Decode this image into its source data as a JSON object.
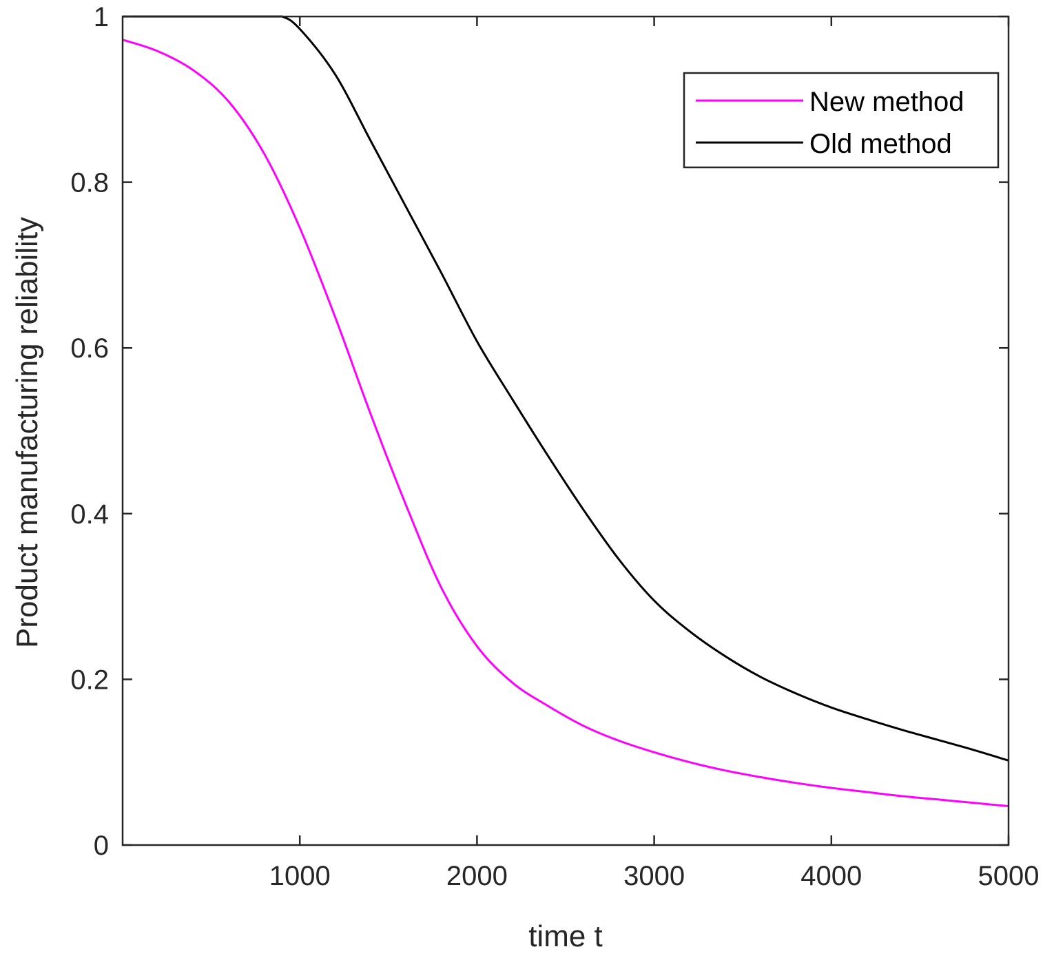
{
  "chart_data": {
    "type": "line",
    "title": "",
    "xlabel": "time t",
    "ylabel": "Product manufacturing reliability",
    "xlim": [
      0,
      5000
    ],
    "ylim": [
      0,
      1
    ],
    "xticks": [
      1000,
      2000,
      3000,
      4000,
      5000
    ],
    "xtick_labels": [
      "1000",
      "2000",
      "3000",
      "4000",
      "5000"
    ],
    "yticks": [
      0,
      0.2,
      0.4,
      0.6,
      0.8,
      1
    ],
    "ytick_labels": [
      "0",
      "0.2",
      "0.4",
      "0.6",
      "0.8",
      "1"
    ],
    "grid": false,
    "legend_position": "top-right",
    "series": [
      {
        "name": "New method",
        "color": "#ff00ff",
        "x": [
          0,
          200,
          400,
          600,
          800,
          1000,
          1200,
          1400,
          1600,
          1800,
          2000,
          2200,
          2400,
          2600,
          2800,
          3000,
          3200,
          3400,
          3600,
          3800,
          4000,
          4200,
          4400,
          4600,
          4800,
          5000
        ],
        "y": [
          0.972,
          0.958,
          0.935,
          0.897,
          0.834,
          0.745,
          0.637,
          0.52,
          0.41,
          0.31,
          0.24,
          0.196,
          0.168,
          0.144,
          0.126,
          0.112,
          0.1,
          0.09,
          0.082,
          0.075,
          0.069,
          0.064,
          0.059,
          0.055,
          0.051,
          0.047
        ]
      },
      {
        "name": "Old method",
        "color": "#000000",
        "x": [
          0,
          200,
          400,
          600,
          800,
          900,
          1000,
          1200,
          1400,
          1600,
          1800,
          2000,
          2200,
          2400,
          2600,
          2800,
          3000,
          3200,
          3400,
          3600,
          3800,
          4000,
          4200,
          4400,
          4600,
          4800,
          5000
        ],
        "y": [
          1,
          1,
          1,
          1,
          1,
          1,
          0.985,
          0.93,
          0.85,
          0.77,
          0.69,
          0.608,
          0.538,
          0.47,
          0.405,
          0.345,
          0.295,
          0.258,
          0.228,
          0.203,
          0.183,
          0.166,
          0.152,
          0.139,
          0.127,
          0.115,
          0.102
        ]
      }
    ]
  }
}
